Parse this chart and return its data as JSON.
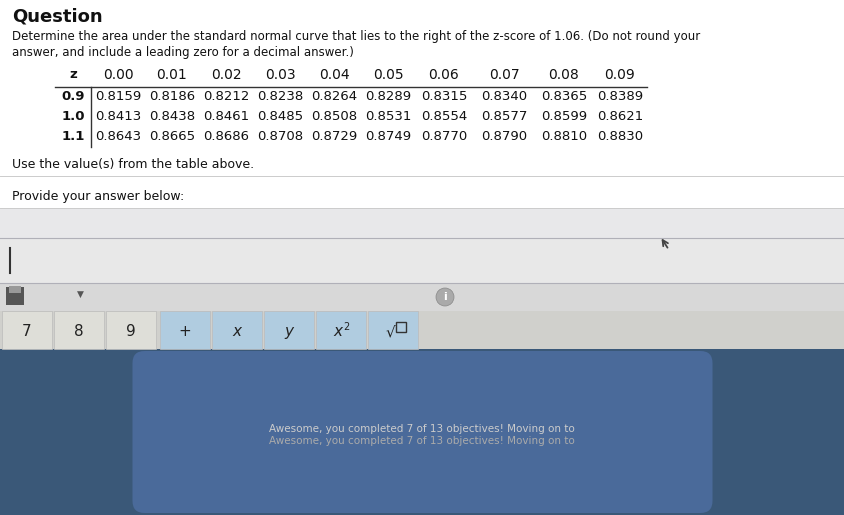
{
  "title": "Question",
  "question_text1": "Determine the area under the standard normal curve that lies to the right of the z-score of 1.06. (Do not round your",
  "question_text2": "answer, and include a leading zero for a decimal answer.)",
  "use_table_text": "Use the value(s) from the table above.",
  "provide_answer_text": "Provide your answer below:",
  "col_headers": [
    "z",
    "0.00",
    "0.01",
    "0.02",
    "0.03",
    "0.04",
    "0.05",
    "0.06",
    "0.07",
    "0.08",
    "0.09"
  ],
  "table_data": [
    [
      "0.9",
      "0.8159",
      "0.8186",
      "0.8212",
      "0.8238",
      "0.8264",
      "0.8289",
      "0.8315",
      "0.8340",
      "0.8365",
      "0.8389"
    ],
    [
      "1.0",
      "0.8413",
      "0.8438",
      "0.8461",
      "0.8485",
      "0.8508",
      "0.8531",
      "0.8554",
      "0.8577",
      "0.8599",
      "0.8621"
    ],
    [
      "1.1",
      "0.8643",
      "0.8665",
      "0.8686",
      "0.8708",
      "0.8729",
      "0.8749",
      "0.8770",
      "0.8790",
      "0.8810",
      "0.8830"
    ]
  ],
  "bg_color": "#f0f0f0",
  "content_bg": "#ffffff",
  "text_color": "#111111",
  "table_line_color": "#333333",
  "bottom_bar_color": "#3a5878",
  "bottom_bar_text": "Awesome, you completed 7 of 13 objectives! Moving on to",
  "input_box_bg": "#e8e8e8",
  "input_box_border": "#aaaaaa",
  "calc_toolbar_bg": "#e0e0e0",
  "btn_light_bg": "#deded8",
  "btn_blue_bg": "#b0cce0",
  "btn_border": "#bbbbbb",
  "cursor_color": "#333333",
  "info_circle_color": "#888888",
  "icon_color": "#555555"
}
